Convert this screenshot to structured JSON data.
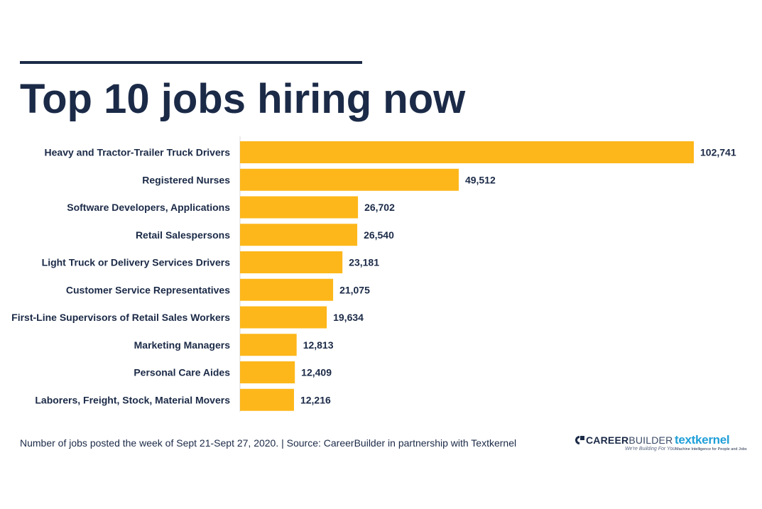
{
  "header": {
    "title": "Top 10 jobs hiring now"
  },
  "chart_data": {
    "type": "bar",
    "orientation": "horizontal",
    "title": "Top 10 jobs hiring now",
    "categories": [
      "Heavy and Tractor-Trailer Truck Drivers",
      "Registered Nurses",
      "Software Developers, Applications",
      "Retail Salespersons",
      "Light Truck or Delivery Services Drivers",
      "Customer Service Representatives",
      "First-Line Supervisors of Retail Sales Workers",
      "Marketing Managers",
      "Personal Care Aides",
      "Laborers, Freight, Stock, Material Movers"
    ],
    "values": [
      102741,
      49512,
      26702,
      26540,
      23181,
      21075,
      19634,
      12813,
      12409,
      12216
    ],
    "value_labels": [
      "102,741",
      "49,512",
      "26,702",
      "26,540",
      "23,181",
      "21,075",
      "19,634",
      "12,813",
      "12,409",
      "12,216"
    ],
    "xlabel": "",
    "ylabel": "",
    "xlim": [
      0,
      102741
    ],
    "bar_color": "#fdb71a",
    "grid": false,
    "legend": "none"
  },
  "footer": {
    "note": "Number of jobs posted the week of Sept 21-Sept 27, 2020. | Source: CareerBuilder in partnership with Textkernel"
  },
  "logos": {
    "careerbuilder": {
      "name_bold": "CAREER",
      "name_thin": "BUILDER",
      "tagline": "We're Building For You"
    },
    "textkernel": {
      "name": "textkernel",
      "tagline": "Machine Intelligence for People and Jobs",
      "color": "#1f9fd8"
    }
  },
  "colors": {
    "navy": "#1b2a47",
    "bar": "#fdb71a",
    "accent": "#1f9fd8"
  }
}
